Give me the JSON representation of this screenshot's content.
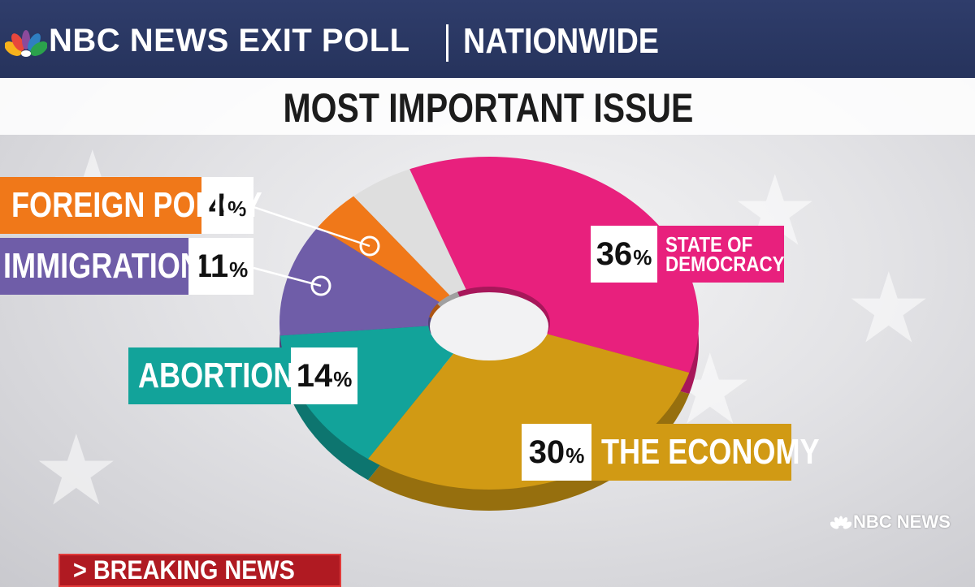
{
  "header": {
    "brand": "NBC NEWS EXIT POLL",
    "region": "NATIONWIDE"
  },
  "chart_data": {
    "type": "pie",
    "style": "donut",
    "title": "MOST IMPORTANT ISSUE",
    "categories": [
      "STATE OF DEMOCRACY",
      "THE ECONOMY",
      "ABORTION",
      "IMMIGRATION",
      "FOREIGN POLICY",
      ""
    ],
    "values": [
      36,
      30,
      14,
      11,
      4,
      5
    ],
    "labels": [
      "36%",
      "30%",
      "14%",
      "11%",
      "4%",
      ""
    ],
    "colors": [
      "#e8207d",
      "#d19a14",
      "#12a39a",
      "#6f5da8",
      "#f07819",
      "#dedede"
    ],
    "legend_placement": "labels-around-slices"
  },
  "watermark": "NBC NEWS",
  "ticker": {
    "label": "> BREAKING NEWS"
  }
}
